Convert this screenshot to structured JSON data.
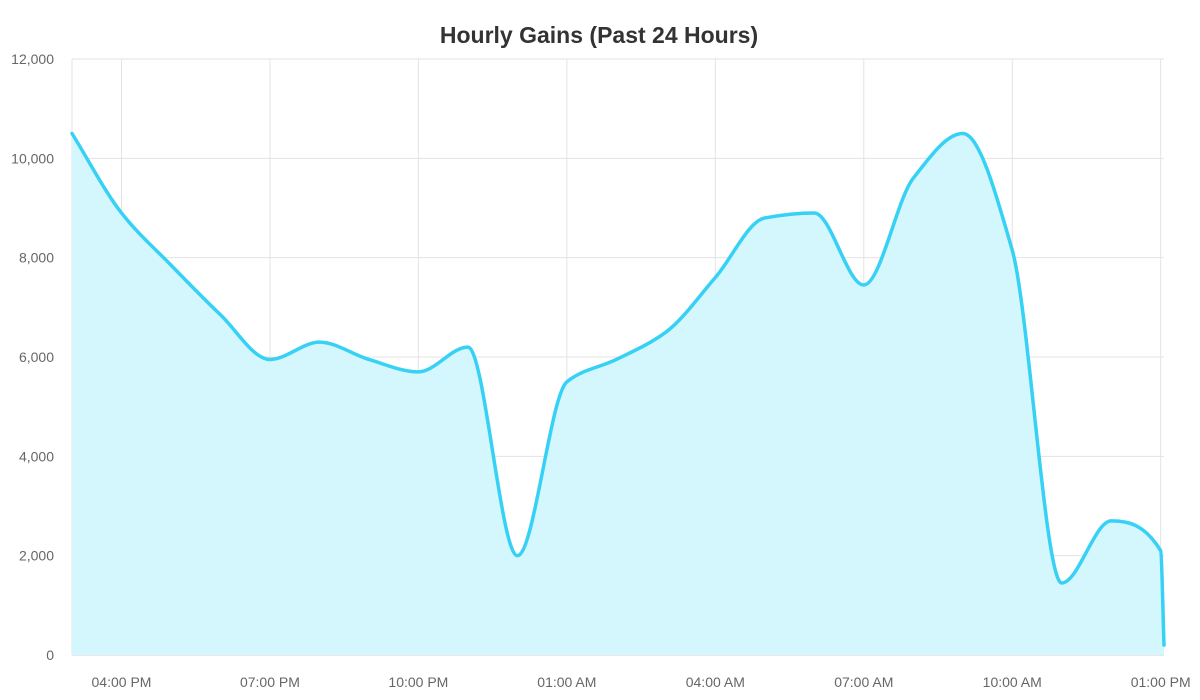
{
  "chart_data": {
    "type": "area",
    "title": "Hourly Gains (Past 24 Hours)",
    "xlabel": "",
    "ylabel": "",
    "ylim": [
      0,
      12000
    ],
    "yticks": [
      0,
      2000,
      4000,
      6000,
      8000,
      10000,
      12000
    ],
    "ytick_labels": [
      "0",
      "2,000",
      "4,000",
      "6,000",
      "8,000",
      "10,000",
      "12,000"
    ],
    "xlim": [
      "03:00 PM",
      "01:04 PM"
    ],
    "xticks": [
      "04:00 PM",
      "07:00 PM",
      "10:00 PM",
      "01:00 AM",
      "04:00 AM",
      "07:00 AM",
      "10:00 AM",
      "01:00 PM"
    ],
    "grid": true,
    "legend": "none",
    "colors": {
      "line": "#36d1f4",
      "fill": "#d4f6fd"
    },
    "x": [
      "03:00 PM",
      "04:00 PM",
      "05:00 PM",
      "06:00 PM",
      "07:00 PM",
      "08:00 PM",
      "09:00 PM",
      "10:00 PM",
      "11:00 PM",
      "12:00 AM",
      "01:00 AM",
      "02:00 AM",
      "03:00 AM",
      "04:00 AM",
      "05:00 AM",
      "06:00 AM",
      "07:00 AM",
      "08:00 AM",
      "09:00 AM",
      "10:00 AM",
      "11:00 AM",
      "12:00 PM",
      "01:00 PM",
      "01:04 PM"
    ],
    "values": [
      10500,
      8900,
      7850,
      6850,
      5950,
      6300,
      5950,
      5700,
      6200,
      2000,
      5500,
      5950,
      6500,
      7600,
      8800,
      8900,
      7450,
      9600,
      10500,
      8150,
      1450,
      2700,
      2100,
      200
    ]
  }
}
